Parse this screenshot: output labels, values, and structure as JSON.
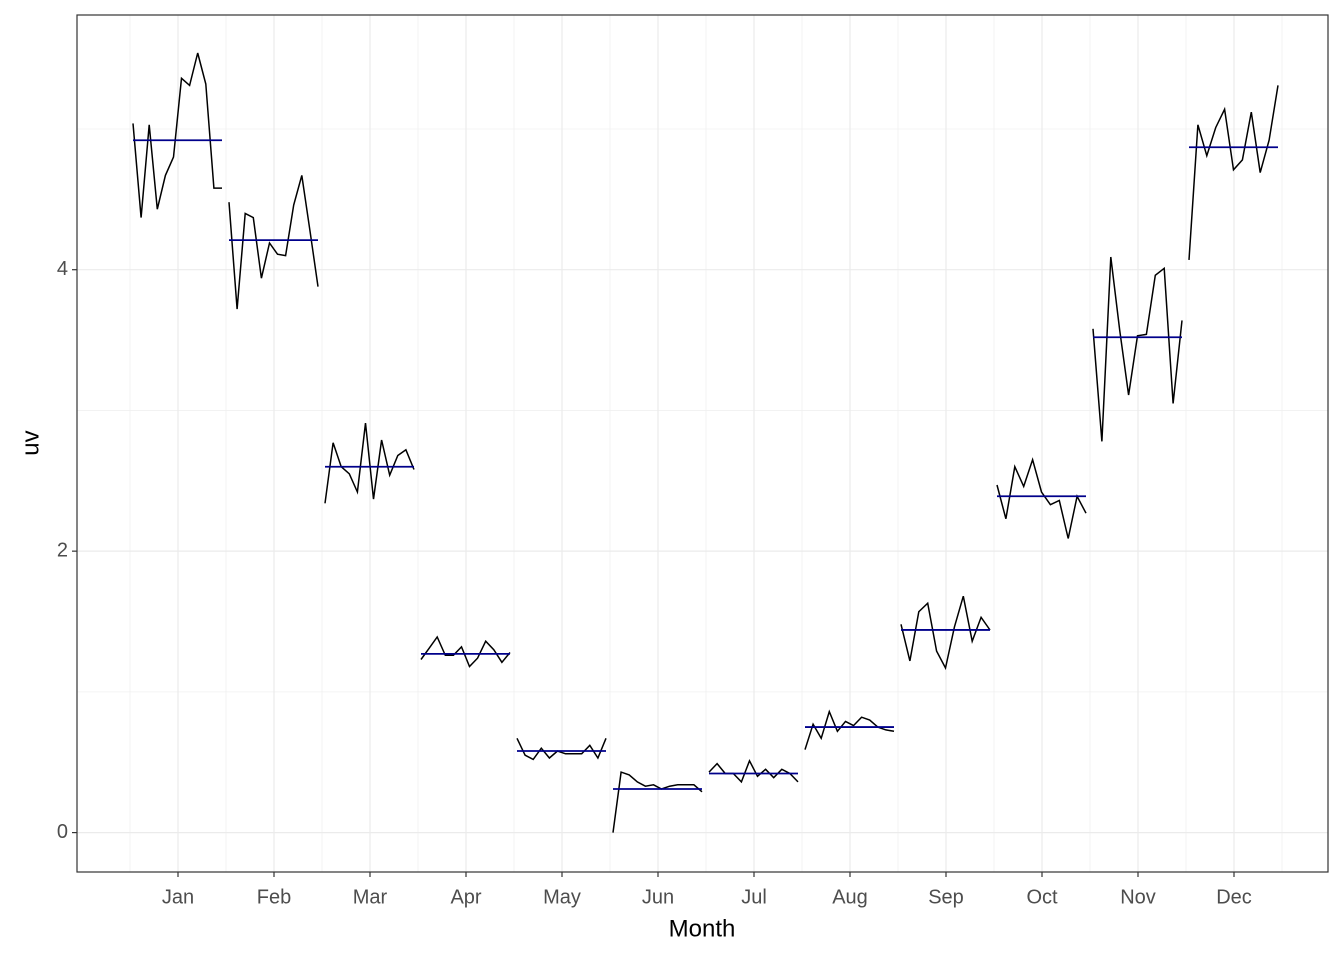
{
  "chart_data": {
    "type": "subseries",
    "x_label": "Month",
    "y_label": "uv",
    "categories": [
      "Jan",
      "Feb",
      "Mar",
      "Apr",
      "May",
      "Jun",
      "Jul",
      "Aug",
      "Sep",
      "Oct",
      "Nov",
      "Dec"
    ],
    "values": [
      [
        5.04,
        4.37,
        5.03,
        4.43,
        4.67,
        4.8,
        5.36,
        5.31,
        5.54,
        5.32,
        4.58,
        4.58
      ],
      [
        4.48,
        3.72,
        4.4,
        4.37,
        3.94,
        4.19,
        4.11,
        4.1,
        4.46,
        4.67,
        4.28,
        3.88
      ],
      [
        2.34,
        2.77,
        2.6,
        2.55,
        2.42,
        2.91,
        2.37,
        2.79,
        2.54,
        2.68,
        2.72,
        2.58
      ],
      [
        1.23,
        1.31,
        1.39,
        1.26,
        1.26,
        1.32,
        1.18,
        1.24,
        1.36,
        1.3,
        1.21,
        1.28
      ],
      [
        0.67,
        0.55,
        0.52,
        0.6,
        0.53,
        0.58,
        0.56,
        0.56,
        0.56,
        0.62,
        0.53,
        0.67
      ],
      [
        0.0,
        0.43,
        0.41,
        0.36,
        0.33,
        0.34,
        0.31,
        0.33,
        0.34,
        0.34,
        0.34,
        0.29
      ],
      [
        0.43,
        0.49,
        0.42,
        0.42,
        0.36,
        0.51,
        0.4,
        0.45,
        0.39,
        0.45,
        0.42,
        0.36
      ],
      [
        0.59,
        0.77,
        0.67,
        0.86,
        0.72,
        0.79,
        0.76,
        0.82,
        0.8,
        0.75,
        0.73,
        0.72
      ],
      [
        1.48,
        1.22,
        1.57,
        1.63,
        1.29,
        1.17,
        1.46,
        1.68,
        1.36,
        1.53,
        1.44
      ],
      [
        2.47,
        2.23,
        2.6,
        2.46,
        2.65,
        2.42,
        2.33,
        2.36,
        2.09,
        2.39,
        2.27
      ],
      [
        3.58,
        2.78,
        4.09,
        3.57,
        3.11,
        3.53,
        3.54,
        3.96,
        4.01,
        3.05,
        3.64
      ],
      [
        4.07,
        5.03,
        4.81,
        5.01,
        5.14,
        4.71,
        4.78,
        5.12,
        4.69,
        4.92,
        5.31
      ]
    ],
    "means": [
      4.92,
      4.21,
      2.6,
      1.27,
      0.58,
      0.31,
      0.42,
      0.75,
      1.44,
      2.39,
      3.52,
      4.87
    ],
    "line_color": "#000000",
    "mean_color": "#00008b",
    "ylim": [
      -0.28,
      5.81
    ],
    "yticks": [
      0,
      2,
      4
    ],
    "y_minor_grid": [
      1,
      3,
      5
    ],
    "grid": true
  }
}
